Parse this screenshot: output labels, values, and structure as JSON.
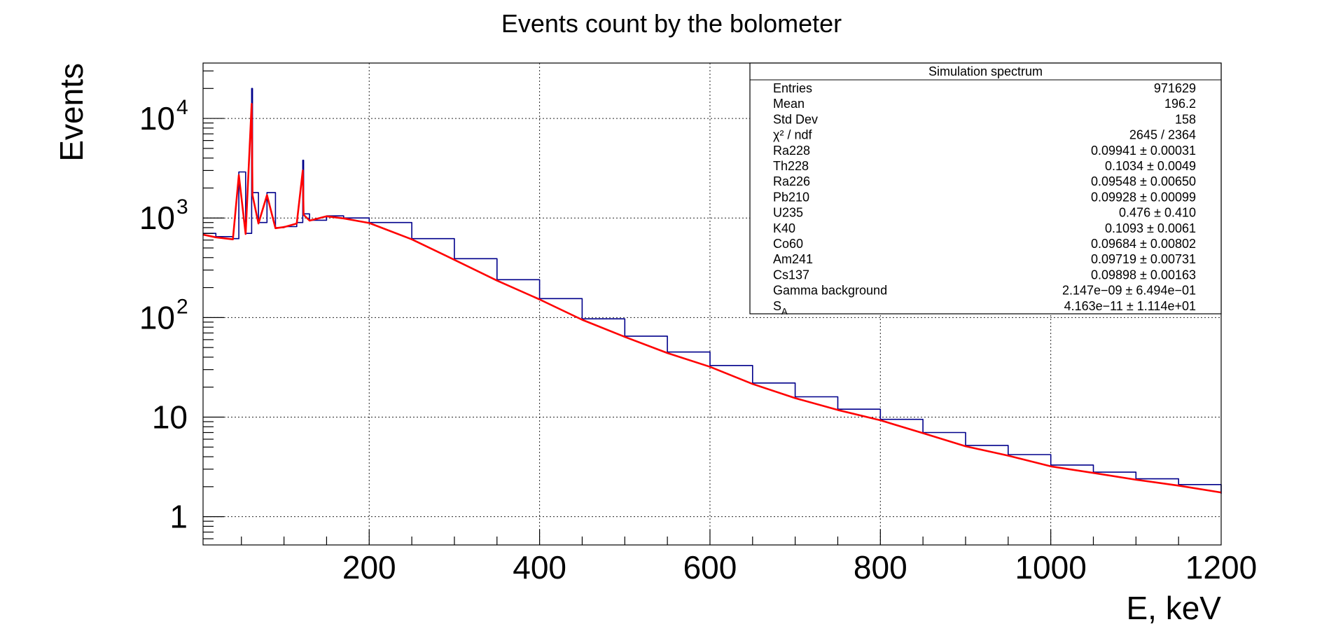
{
  "chart_data": {
    "type": "line",
    "title": "Events count by the bolometer",
    "xlabel": "E, keV",
    "ylabel": "Events",
    "xlim": [
      5,
      1200
    ],
    "ylim": [
      0.52,
      36000
    ],
    "yscale": "log",
    "grid": true,
    "x_ticks": [
      200,
      400,
      600,
      800,
      1000,
      1200
    ],
    "y_ticks": [
      {
        "value": 1,
        "label": "1",
        "exp": ""
      },
      {
        "value": 10,
        "label": "10",
        "exp": ""
      },
      {
        "value": 100,
        "label": "10",
        "exp": "2"
      },
      {
        "value": 1000,
        "label": "10",
        "exp": "3"
      },
      {
        "value": 10000,
        "label": "10",
        "exp": "4"
      }
    ],
    "series": [
      {
        "color": "#00008b",
        "style": "histogram",
        "x": [
          5,
          20,
          40,
          47,
          55,
          62,
          63,
          70,
          80,
          90,
          100,
          115,
          122,
          123,
          130,
          150,
          170,
          200,
          250,
          300,
          350,
          400,
          450,
          500,
          550,
          600,
          650,
          700,
          750,
          800,
          850,
          900,
          950,
          1000,
          1050,
          1100,
          1150,
          1200
        ],
        "y": [
          700,
          650,
          620,
          2900,
          700,
          20000,
          1800,
          900,
          1800,
          800,
          820,
          900,
          3800,
          1100,
          950,
          1050,
          1000,
          900,
          620,
          390,
          240,
          155,
          97,
          65,
          45,
          33,
          22,
          16,
          12,
          9.5,
          7,
          5.2,
          4.2,
          3.3,
          2.8,
          2.4,
          2.1,
          1.7
        ]
      },
      {
        "color": "#ff0000",
        "style": "line",
        "x": [
          5,
          20,
          40,
          47,
          55,
          62,
          63,
          70,
          80,
          90,
          100,
          115,
          122,
          123,
          130,
          150,
          170,
          200,
          250,
          300,
          350,
          400,
          450,
          500,
          550,
          600,
          650,
          700,
          750,
          800,
          850,
          900,
          950,
          1000,
          1050,
          1100,
          1150,
          1200
        ],
        "y": [
          680,
          640,
          610,
          2700,
          690,
          14000,
          1700,
          880,
          1700,
          790,
          810,
          880,
          3000,
          1080,
          940,
          1040,
          990,
          890,
          610,
          380,
          235,
          152,
          95,
          64,
          44,
          32,
          21.5,
          15.5,
          11.8,
          9.3,
          6.9,
          5.1,
          4.1,
          3.2,
          2.75,
          2.35,
          2.05,
          1.75
        ]
      }
    ],
    "stats_box": {
      "title": "Simulation spectrum",
      "rows": [
        {
          "label": "Entries",
          "value": "971629"
        },
        {
          "label": "Mean",
          "value": "196.2"
        },
        {
          "label": "Std Dev",
          "value": "158"
        },
        {
          "label": "χ² / ndf",
          "value": "2645 / 2364"
        },
        {
          "label": "Ra228",
          "value": "0.09941 ± 0.00031"
        },
        {
          "label": "Th228",
          "value": "0.1034 ± 0.0049"
        },
        {
          "label": "Ra226",
          "value": "0.09548 ± 0.00650"
        },
        {
          "label": "Pb210",
          "value": "0.09928 ± 0.00099"
        },
        {
          "label": "U235",
          "value": "0.476 ± 0.410"
        },
        {
          "label": "K40",
          "value": "0.1093 ± 0.0061"
        },
        {
          "label": "Co60",
          "value": "0.09684 ± 0.00802"
        },
        {
          "label": "Am241",
          "value": "0.09719 ± 0.00731"
        },
        {
          "label": "Cs137",
          "value": "0.09898 ± 0.00163"
        },
        {
          "label": "Gamma background",
          "value": "2.147e−09 ± 6.494e−01"
        },
        {
          "label": "S",
          "label_sub": "A",
          "value": "4.163e−11 ± 1.114e+01"
        }
      ]
    }
  }
}
